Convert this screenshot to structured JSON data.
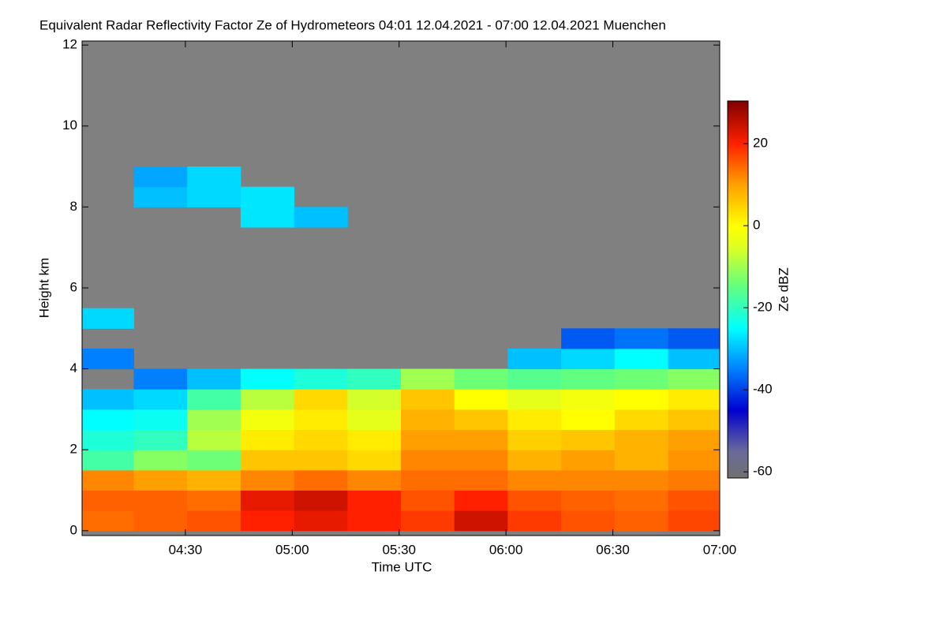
{
  "chart_data": {
    "type": "heatmap",
    "title": "Equivalent Radar Reflectivity Factor Ze of Hydrometeors   04:01 12.04.2021 - 07:00 12.04.2021 Muenchen",
    "x_label": "Time UTC",
    "y_label": "Height km",
    "colorbar_label": "Ze dBZ",
    "x": [
      "04:08",
      "04:23",
      "04:38",
      "04:53",
      "05:08",
      "05:23",
      "05:38",
      "05:53",
      "06:08",
      "06:23",
      "06:38",
      "06:53"
    ],
    "y": [
      0.25,
      0.75,
      1.25,
      1.75,
      2.25,
      2.75,
      3.25,
      3.75,
      4.25,
      4.75,
      5.25,
      5.75,
      6.25,
      6.75,
      7.25,
      7.75,
      8.25,
      8.75
    ],
    "z": [
      [
        14,
        15,
        16,
        20,
        22,
        20,
        18,
        24,
        18,
        16,
        15,
        17
      ],
      [
        15,
        15,
        14,
        22,
        24,
        20,
        16,
        20,
        16,
        15,
        14,
        16
      ],
      [
        12,
        10,
        8,
        12,
        14,
        12,
        14,
        14,
        12,
        12,
        12,
        13
      ],
      [
        -18,
        -12,
        -14,
        6,
        6,
        4,
        12,
        12,
        8,
        10,
        8,
        11
      ],
      [
        -22,
        -20,
        -8,
        2,
        4,
        2,
        10,
        10,
        5,
        6,
        8,
        10
      ],
      [
        -25,
        -24,
        -10,
        -2,
        2,
        -4,
        8,
        6,
        2,
        0,
        4,
        6
      ],
      [
        -30,
        -28,
        -18,
        -8,
        4,
        -6,
        6,
        0,
        -4,
        -2,
        0,
        2
      ],
      [
        null,
        -35,
        -30,
        -25,
        -22,
        -20,
        -10,
        -14,
        -16,
        -15,
        -14,
        -12
      ],
      [
        -35,
        null,
        null,
        null,
        null,
        null,
        null,
        null,
        -30,
        -28,
        -25,
        -30
      ],
      [
        null,
        null,
        null,
        null,
        null,
        null,
        null,
        null,
        null,
        -38,
        -36,
        -38
      ],
      [
        -28,
        null,
        null,
        null,
        null,
        null,
        null,
        null,
        null,
        null,
        null,
        null
      ],
      [
        null,
        null,
        null,
        null,
        null,
        null,
        null,
        null,
        null,
        null,
        null,
        null
      ],
      [
        null,
        null,
        null,
        null,
        null,
        null,
        null,
        null,
        null,
        null,
        null,
        null
      ],
      [
        null,
        null,
        null,
        null,
        null,
        null,
        null,
        null,
        null,
        null,
        null,
        null
      ],
      [
        null,
        null,
        null,
        null,
        null,
        null,
        null,
        null,
        null,
        null,
        null,
        null
      ],
      [
        null,
        null,
        null,
        -27,
        -30,
        null,
        null,
        null,
        null,
        null,
        null,
        null
      ],
      [
        null,
        -30,
        -28,
        -27,
        null,
        null,
        null,
        null,
        null,
        null,
        null,
        null
      ],
      [
        null,
        -32,
        -28,
        null,
        null,
        null,
        null,
        null,
        null,
        null,
        null,
        null
      ]
    ],
    "xlim": [
      "04:01",
      "07:00"
    ],
    "xticks": [
      "04:30",
      "05:00",
      "05:30",
      "06:00",
      "06:30",
      "07:00"
    ],
    "ylim": [
      -0.12,
      12.1
    ],
    "yticks": [
      0,
      2,
      4,
      6,
      8,
      10,
      12
    ],
    "zlim": [
      -61.5,
      30.4
    ],
    "zticks": [
      20,
      0,
      -20,
      -40,
      -60
    ],
    "nan_color": "#808080",
    "colorscale": [
      [
        -61.5,
        "#707070"
      ],
      [
        -55,
        "#6a6a9a"
      ],
      [
        -45,
        "#0000d0"
      ],
      [
        -35,
        "#0080ff"
      ],
      [
        -25,
        "#00ffff"
      ],
      [
        -15,
        "#60ff80"
      ],
      [
        -5,
        "#e0ff20"
      ],
      [
        0,
        "#ffff00"
      ],
      [
        10,
        "#ffa000"
      ],
      [
        20,
        "#ff2000"
      ],
      [
        30.4,
        "#800000"
      ]
    ]
  }
}
